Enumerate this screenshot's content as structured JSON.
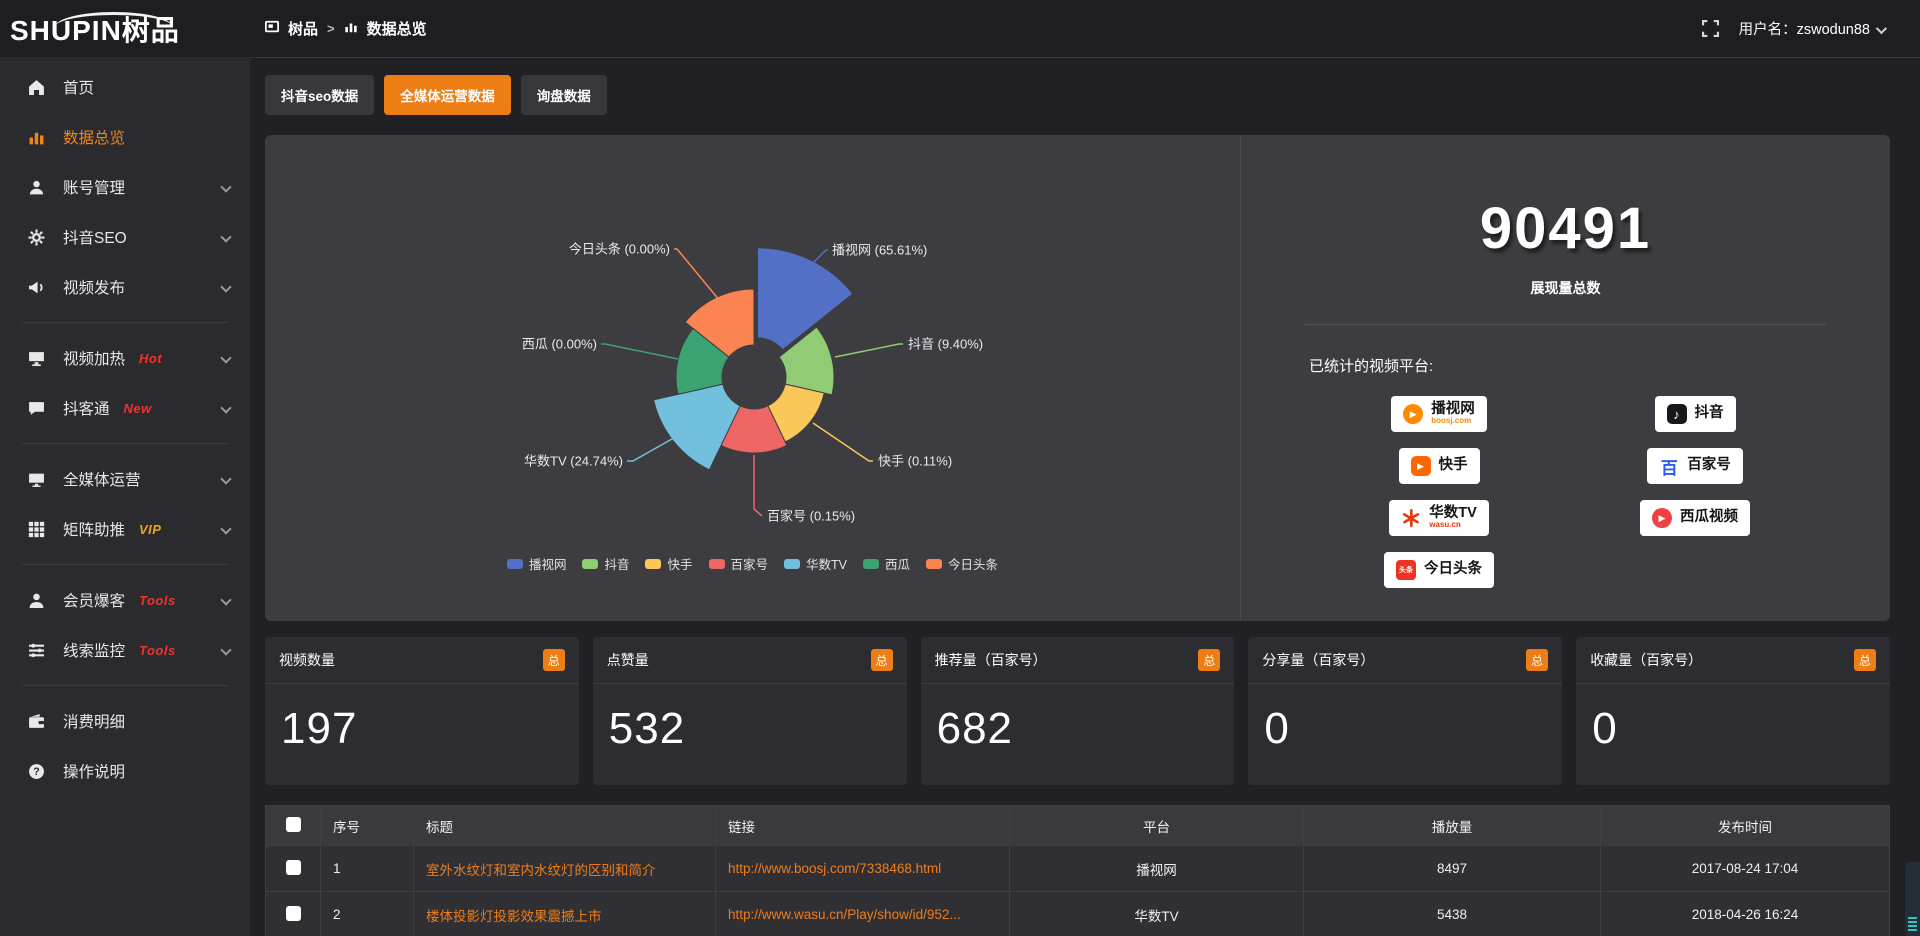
{
  "header": {
    "logo": "SHUPIN树品",
    "breadcrumb": {
      "root": "树品",
      "separator": ">",
      "current": "数据总览"
    },
    "user_label": "用户名：",
    "username": "zswodun88"
  },
  "sidebar": {
    "items": [
      {
        "label": "首页",
        "icon": "home"
      },
      {
        "label": "数据总览",
        "icon": "bar-chart",
        "active": true
      },
      {
        "label": "账号管理",
        "icon": "user",
        "expandable": true
      },
      {
        "label": "抖音SEO",
        "icon": "gear",
        "expandable": true
      },
      {
        "label": "视频发布",
        "icon": "megaphone",
        "expandable": true
      },
      {
        "divider": true
      },
      {
        "label": "视频加热",
        "icon": "monitor-play",
        "badge": "Hot",
        "badge_color": "#f3322b",
        "expandable": true
      },
      {
        "label": "抖客通",
        "icon": "chat",
        "badge": "New",
        "badge_color": "#f3322b",
        "expandable": true
      },
      {
        "divider": true
      },
      {
        "label": "全媒体运营",
        "icon": "monitor",
        "expandable": true
      },
      {
        "label": "矩阵助推",
        "icon": "grid",
        "badge": "VIP",
        "badge_color": "#efa21b",
        "expandable": true
      },
      {
        "divider": true
      },
      {
        "label": "会员爆客",
        "icon": "user-solid",
        "badge": "Tools",
        "badge_color": "#f3322b",
        "expandable": true
      },
      {
        "label": "线索监控",
        "icon": "sliders",
        "badge": "Tools",
        "badge_color": "#f3322b",
        "expandable": true
      },
      {
        "divider": true
      },
      {
        "label": "消费明细",
        "icon": "wallet"
      },
      {
        "label": "操作说明",
        "icon": "question"
      }
    ]
  },
  "tabs": [
    {
      "label": "抖音seo数据",
      "active": false
    },
    {
      "label": "全媒体运营数据",
      "active": true
    },
    {
      "label": "询盘数据",
      "active": false
    }
  ],
  "chart_data": {
    "type": "pie",
    "variant": "nightingale-rose-donut",
    "legend_position": "bottom",
    "items": [
      {
        "name": "播视网",
        "value": 65.61,
        "color": "#5470c6",
        "label": "播视网 (65.61%)"
      },
      {
        "name": "抖音",
        "value": 9.4,
        "color": "#91cc75",
        "label": "抖音 (9.40%)"
      },
      {
        "name": "快手",
        "value": 0.11,
        "color": "#fac858",
        "label": "快手 (0.11%)"
      },
      {
        "name": "百家号",
        "value": 0.15,
        "color": "#ee6666",
        "label": "百家号 (0.15%)"
      },
      {
        "name": "华数TV",
        "value": 24.74,
        "color": "#73c0de",
        "label": "华数TV (24.74%)"
      },
      {
        "name": "西瓜",
        "value": 0.0,
        "color": "#3ba272",
        "label": "西瓜 (0.00%)"
      },
      {
        "name": "今日头条",
        "value": 0.0,
        "color": "#fc8452",
        "label": "今日头条 (0.00%)"
      }
    ]
  },
  "summary": {
    "value": "90491",
    "label": "展现量总数",
    "platforms_title": "已统计的视频平台:"
  },
  "platforms": [
    {
      "name": "播视网",
      "sub": "boosj.com",
      "sub_color": "#ff8a00",
      "icon": "play-circle",
      "icon_color": "#ff8a00"
    },
    {
      "name": "抖音",
      "icon": "tiktok-note",
      "icon_color": "#16161c"
    },
    {
      "name": "快手",
      "icon": "kuaishou-play",
      "icon_color": "#ff6600"
    },
    {
      "name": "百家号",
      "icon": "baijiahao",
      "icon_color": "#2d5af1"
    },
    {
      "name": "华数TV",
      "sub": "wasu.cn",
      "sub_color": "#e8380d",
      "icon": "wasu-star",
      "icon_color": "#e8380d"
    },
    {
      "name": "西瓜视频",
      "icon": "xigua-play",
      "icon_color": "#f04142"
    },
    {
      "name": "今日头条",
      "icon": "toutiao",
      "icon_color": "#ed3321"
    }
  ],
  "stat_cards": [
    {
      "title": "视频数量",
      "badge": "总",
      "value": "197"
    },
    {
      "title": "点赞量",
      "badge": "总",
      "value": "532"
    },
    {
      "title": "推荐量（百家号）",
      "badge": "总",
      "value": "682"
    },
    {
      "title": "分享量（百家号）",
      "badge": "总",
      "value": "0"
    },
    {
      "title": "收藏量（百家号）",
      "badge": "总",
      "value": "0"
    }
  ],
  "table": {
    "columns": [
      "",
      "序号",
      "标题",
      "链接",
      "平台",
      "播放量",
      "发布时间"
    ],
    "rows": [
      {
        "no": "1",
        "title": "室外水纹灯和室内水纹灯的区别和简介",
        "link": "http://www.boosj.com/7338468.html",
        "platform": "播视网",
        "plays": "8497",
        "time": "2017-08-24 17:04"
      },
      {
        "no": "2",
        "title": "楼体投影灯投影效果震撼上市",
        "link": "http://www.wasu.cn/Play/show/id/952...",
        "platform": "华数TV",
        "plays": "5438",
        "time": "2018-04-26 16:24"
      }
    ]
  }
}
